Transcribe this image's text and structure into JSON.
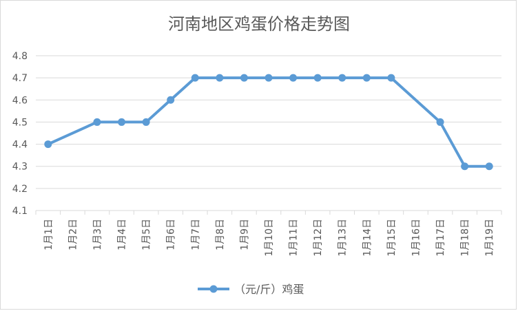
{
  "chart_data": {
    "type": "line",
    "title": "河南地区鸡蛋价格走势图",
    "categories": [
      "1月1日",
      "1月2日",
      "1月3日",
      "1月4日",
      "1月5日",
      "1月6日",
      "1月7日",
      "1月8日",
      "1月9日",
      "1月10日",
      "1月11日",
      "1月12日",
      "1月13日",
      "1月14日",
      "1月15日",
      "1月16日",
      "1月17日",
      "1月18日",
      "1月19日"
    ],
    "series": [
      {
        "name": "（元/斤）鸡蛋",
        "values": [
          4.4,
          null,
          4.5,
          4.5,
          4.5,
          4.6,
          4.7,
          4.7,
          4.7,
          4.7,
          4.7,
          4.7,
          4.7,
          4.7,
          4.7,
          null,
          4.5,
          4.3,
          4.3
        ]
      }
    ],
    "ylim": [
      4.1,
      4.8
    ],
    "yticks": [
      "4.1",
      "4.2",
      "4.3",
      "4.4",
      "4.5",
      "4.6",
      "4.7",
      "4.8"
    ],
    "grid": true,
    "legend": "bottom",
    "colors": {
      "line": "#5b9bd5",
      "grid": "#d9d9d9",
      "text": "#595959"
    }
  }
}
